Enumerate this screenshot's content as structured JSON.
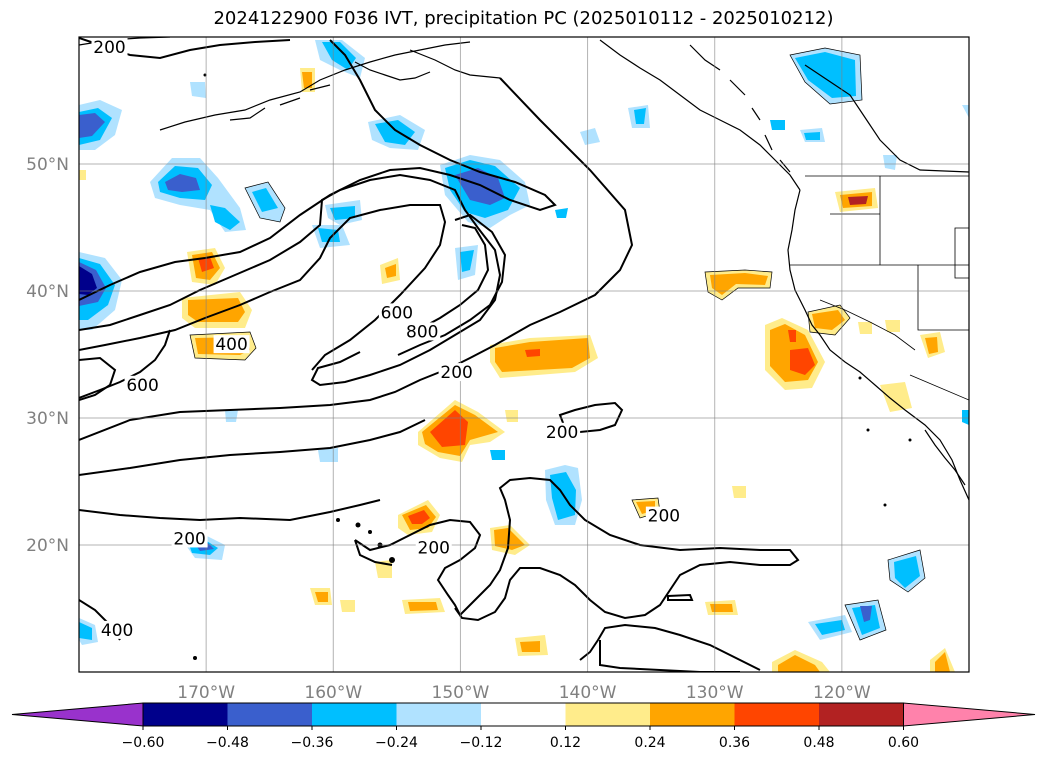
{
  "title": "2024122900 F036 IVT, precipitation PC (2025010112 - 2025010212)",
  "map": {
    "lon_range": [
      -180,
      -110
    ],
    "lat_range": [
      10,
      60
    ],
    "lat_ticks": [
      {
        "value": 20,
        "label": "20°N"
      },
      {
        "value": 30,
        "label": "30°N"
      },
      {
        "value": 40,
        "label": "40°N"
      },
      {
        "value": 50,
        "label": "50°N"
      }
    ],
    "lon_ticks": [
      {
        "value": -170,
        "label": "170°W"
      },
      {
        "value": -160,
        "label": "160°W"
      },
      {
        "value": -150,
        "label": "150°W"
      },
      {
        "value": -140,
        "label": "140°W"
      },
      {
        "value": -130,
        "label": "130°W"
      },
      {
        "value": -120,
        "label": "120°W"
      }
    ],
    "grid": true
  },
  "contour_labels": [
    {
      "text": "200",
      "lon": -171.3,
      "lat": 20.2
    },
    {
      "text": "200",
      "lon": -152.1,
      "lat": 19.5
    },
    {
      "text": "200",
      "lon": -142.0,
      "lat": 28.6
    },
    {
      "text": "200",
      "lon": -134.0,
      "lat": 22.0
    },
    {
      "text": "200",
      "lon": -150.3,
      "lat": 33.3
    },
    {
      "text": "200",
      "lon": -177.6,
      "lat": 58.9
    },
    {
      "text": "400",
      "lon": -168.0,
      "lat": 35.5
    },
    {
      "text": "400",
      "lon": -177.0,
      "lat": 13.0
    },
    {
      "text": "600",
      "lon": -175.0,
      "lat": 32.3
    },
    {
      "text": "600",
      "lon": -155.0,
      "lat": 38.0
    },
    {
      "text": "800",
      "lon": -153.0,
      "lat": 36.5
    }
  ],
  "colorbar": {
    "colors": [
      "#9932cc",
      "#00008b",
      "#3a5fcd",
      "#00bfff",
      "#b0e2ff",
      "#ffffff",
      "#ffec8b",
      "#ffa500",
      "#ff4500",
      "#b22222",
      "#ff82ab"
    ],
    "labels": [
      "−0.60",
      "−0.48",
      "−0.36",
      "−0.24",
      "−0.12",
      "0.12",
      "0.24",
      "0.36",
      "0.48",
      "0.60"
    ]
  }
}
